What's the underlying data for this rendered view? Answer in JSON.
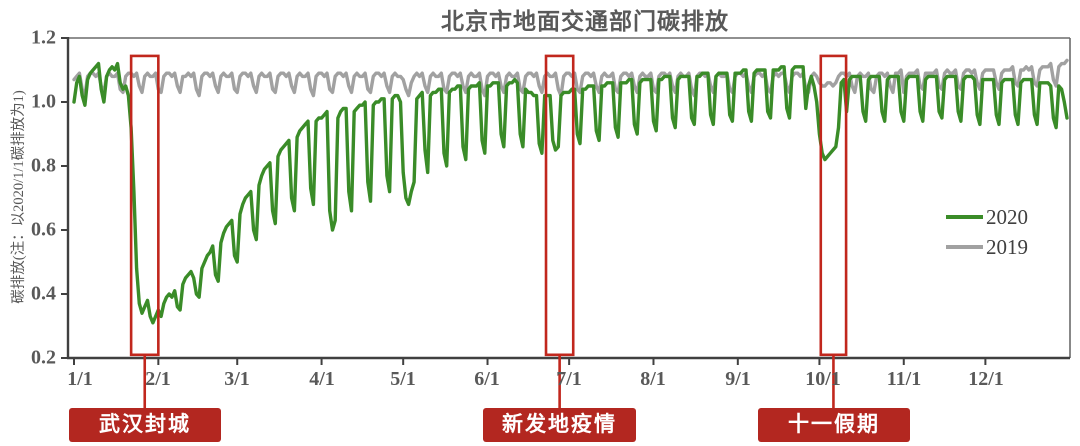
{
  "header": {
    "title": "北京市地面交通部门碳排放"
  },
  "theme": {
    "green_2020": "#3A8C28",
    "gray_2019": "#A1A1A1",
    "annotation_box_stroke": "#C1271D",
    "annotation_label_bg": "#B32720",
    "annotation_label_text": "#FFFFFF",
    "axis_color": "#404040",
    "border_color": "#6b6b6b",
    "tick_text_color": "#595959"
  },
  "chart_data": {
    "type": "line",
    "title": "北京市地面交通部门碳排放",
    "xlabel": "",
    "ylabel": "碳排放(注：以2020/1/1碳排放为1)",
    "ylim": [
      0.2,
      1.2
    ],
    "y_ticks": [
      1.2,
      1.0,
      0.8,
      0.6,
      0.4,
      0.2
    ],
    "y_ticklabels": [
      "1.2",
      "1.0",
      "0.8",
      "0.6",
      "0.4",
      "0.2"
    ],
    "x_ticklabels": [
      "1/1",
      "2/1",
      "3/1",
      "4/1",
      "5/1",
      "6/1",
      "7/1",
      "8/1",
      "9/1",
      "10/1",
      "11/1",
      "12/1"
    ],
    "month_start_day_indices": [
      0,
      31,
      60,
      91,
      121,
      152,
      182,
      213,
      244,
      274,
      305,
      335
    ],
    "grid": false,
    "legend_position": "right-middle",
    "series": [
      {
        "name": "2019",
        "color": "#A1A1A1",
        "z": 1,
        "values": [
          1.07,
          1.08,
          1.09,
          1.04,
          1.02,
          1.08,
          1.09,
          1.09,
          1.08,
          1.09,
          1.05,
          1.03,
          1.08,
          1.09,
          1.08,
          1.08,
          1.09,
          1.04,
          1.03,
          1.08,
          1.09,
          1.09,
          1.08,
          1.09,
          1.05,
          1.03,
          1.08,
          1.09,
          1.08,
          1.08,
          1.09,
          1.04,
          1.03,
          1.08,
          1.09,
          1.09,
          1.08,
          1.09,
          1.05,
          1.03,
          1.08,
          1.08,
          1.09,
          1.08,
          1.09,
          1.04,
          1.02,
          1.08,
          1.09,
          1.09,
          1.08,
          1.09,
          1.05,
          1.03,
          1.08,
          1.09,
          1.08,
          1.08,
          1.09,
          1.04,
          1.03,
          1.08,
          1.09,
          1.09,
          1.08,
          1.09,
          1.05,
          1.03,
          1.08,
          1.09,
          1.08,
          1.08,
          1.09,
          1.04,
          1.03,
          1.08,
          1.09,
          1.09,
          1.08,
          1.09,
          1.05,
          1.03,
          1.08,
          1.09,
          1.08,
          1.08,
          1.09,
          1.04,
          1.02,
          1.08,
          1.09,
          1.09,
          1.08,
          1.09,
          1.04,
          1.03,
          1.08,
          1.09,
          1.09,
          1.08,
          1.09,
          1.05,
          1.03,
          1.08,
          1.09,
          1.08,
          1.08,
          1.09,
          1.04,
          1.03,
          1.08,
          1.09,
          1.09,
          1.08,
          1.09,
          1.05,
          1.03,
          1.08,
          1.09,
          1.08,
          1.08,
          1.07,
          1.04,
          1.02,
          1.06,
          1.08,
          1.09,
          1.08,
          1.09,
          1.05,
          1.03,
          1.08,
          1.09,
          1.08,
          1.08,
          1.09,
          1.04,
          1.03,
          1.08,
          1.09,
          1.09,
          1.08,
          1.09,
          1.05,
          1.03,
          1.08,
          1.09,
          1.08,
          1.08,
          1.09,
          1.04,
          1.02,
          1.08,
          1.09,
          1.09,
          1.08,
          1.09,
          1.05,
          1.03,
          1.08,
          1.09,
          1.08,
          1.08,
          1.09,
          1.04,
          1.03,
          1.08,
          1.09,
          1.09,
          1.08,
          1.09,
          1.05,
          1.03,
          1.08,
          1.09,
          1.08,
          1.08,
          1.09,
          1.04,
          1.02,
          1.08,
          1.09,
          1.09,
          1.08,
          1.09,
          1.04,
          1.03,
          1.08,
          1.09,
          1.09,
          1.08,
          1.09,
          1.05,
          1.03,
          1.08,
          1.09,
          1.08,
          1.08,
          1.09,
          1.04,
          1.03,
          1.08,
          1.09,
          1.09,
          1.08,
          1.09,
          1.05,
          1.03,
          1.08,
          1.09,
          1.08,
          1.08,
          1.09,
          1.04,
          1.03,
          1.08,
          1.09,
          1.09,
          1.08,
          1.09,
          1.05,
          1.03,
          1.08,
          1.09,
          1.08,
          1.08,
          1.09,
          1.04,
          1.02,
          1.08,
          1.09,
          1.09,
          1.08,
          1.09,
          1.05,
          1.03,
          1.08,
          1.09,
          1.08,
          1.08,
          1.09,
          1.04,
          1.03,
          1.08,
          1.09,
          1.09,
          1.08,
          1.09,
          1.05,
          1.03,
          1.08,
          1.09,
          1.09,
          1.08,
          1.09,
          1.04,
          1.03,
          1.08,
          1.09,
          1.08,
          1.09,
          1.09,
          1.05,
          1.03,
          1.08,
          1.09,
          1.09,
          1.08,
          1.09,
          1.04,
          1.03,
          1.08,
          1.09,
          1.08,
          1.06,
          1.05,
          1.05,
          1.06,
          1.06,
          1.05,
          1.06,
          1.08,
          1.09,
          1.09,
          1.08,
          1.09,
          1.05,
          1.03,
          1.08,
          1.09,
          1.08,
          1.08,
          1.09,
          1.04,
          1.03,
          1.08,
          1.09,
          1.09,
          1.08,
          1.09,
          1.05,
          1.03,
          1.09,
          1.09,
          1.1,
          1.03,
          1.08,
          1.09,
          1.09,
          1.09,
          1.1,
          1.05,
          1.04,
          1.09,
          1.09,
          1.09,
          1.09,
          1.1,
          1.05,
          1.04,
          1.09,
          1.1,
          1.09,
          1.09,
          1.1,
          1.05,
          1.04,
          1.09,
          1.1,
          1.1,
          1.09,
          1.1,
          1.06,
          1.04,
          1.09,
          1.1,
          1.1,
          1.1,
          1.1,
          1.06,
          1.04,
          1.09,
          1.1,
          1.1,
          1.1,
          1.11,
          1.06,
          1.05,
          1.1,
          1.1,
          1.11,
          1.1,
          1.11,
          1.06,
          1.05,
          1.1,
          1.11,
          1.11,
          1.11,
          1.12,
          1.07,
          1.05,
          1.11,
          1.12,
          1.12,
          1.13
        ]
      },
      {
        "name": "2020",
        "color": "#3A8C28",
        "z": 2,
        "values": [
          1.0,
          1.06,
          1.08,
          1.02,
          0.99,
          1.07,
          1.09,
          1.1,
          1.11,
          1.12,
          1.04,
          1.0,
          1.08,
          1.1,
          1.11,
          1.1,
          1.12,
          1.06,
          1.04,
          1.05,
          1.02,
          0.92,
          0.72,
          0.48,
          0.37,
          0.34,
          0.36,
          0.38,
          0.33,
          0.31,
          0.33,
          0.35,
          0.33,
          0.37,
          0.39,
          0.4,
          0.39,
          0.41,
          0.36,
          0.35,
          0.43,
          0.45,
          0.46,
          0.47,
          0.45,
          0.4,
          0.39,
          0.48,
          0.5,
          0.52,
          0.53,
          0.55,
          0.46,
          0.44,
          0.56,
          0.59,
          0.61,
          0.62,
          0.63,
          0.52,
          0.5,
          0.65,
          0.68,
          0.7,
          0.71,
          0.72,
          0.6,
          0.57,
          0.74,
          0.77,
          0.79,
          0.8,
          0.81,
          0.66,
          0.62,
          0.83,
          0.85,
          0.86,
          0.87,
          0.88,
          0.7,
          0.66,
          0.89,
          0.91,
          0.92,
          0.93,
          0.94,
          0.73,
          0.68,
          0.94,
          0.95,
          0.95,
          0.96,
          0.97,
          0.66,
          0.6,
          0.63,
          0.95,
          0.97,
          0.98,
          0.98,
          0.72,
          0.66,
          0.97,
          0.98,
          0.99,
          0.99,
          1.0,
          0.75,
          0.69,
          0.99,
          1.0,
          1.0,
          1.01,
          1.01,
          0.77,
          0.72,
          1.01,
          1.02,
          1.02,
          1.0,
          0.78,
          0.7,
          0.68,
          0.72,
          0.75,
          1.01,
          1.02,
          1.03,
          0.85,
          0.78,
          1.02,
          1.03,
          1.03,
          1.04,
          1.04,
          0.84,
          0.8,
          1.03,
          1.04,
          1.04,
          1.05,
          1.05,
          0.86,
          0.82,
          1.04,
          1.05,
          1.05,
          1.05,
          1.06,
          0.88,
          0.84,
          1.05,
          1.05,
          1.06,
          1.06,
          1.06,
          0.9,
          0.86,
          1.05,
          1.06,
          1.06,
          1.07,
          1.06,
          0.9,
          0.86,
          1.04,
          1.03,
          1.03,
          1.02,
          1.02,
          0.87,
          0.84,
          1.02,
          1.02,
          1.02,
          0.88,
          0.85,
          0.86,
          1.02,
          1.03,
          1.03,
          1.03,
          1.04,
          1.04,
          0.9,
          0.87,
          1.04,
          1.04,
          1.05,
          1.05,
          1.05,
          0.91,
          0.88,
          1.05,
          1.05,
          1.06,
          1.06,
          1.06,
          0.92,
          0.89,
          1.06,
          1.06,
          1.06,
          1.07,
          1.07,
          0.93,
          0.9,
          1.06,
          1.07,
          1.07,
          1.07,
          1.07,
          0.94,
          0.91,
          1.07,
          1.07,
          1.08,
          1.08,
          1.08,
          0.95,
          0.92,
          1.07,
          1.08,
          1.08,
          1.08,
          1.08,
          0.95,
          0.93,
          1.08,
          1.08,
          1.09,
          1.09,
          1.09,
          0.96,
          0.93,
          1.08,
          1.09,
          1.09,
          1.09,
          1.09,
          0.96,
          0.94,
          1.09,
          1.09,
          1.09,
          1.1,
          1.1,
          0.97,
          0.94,
          1.09,
          1.1,
          1.1,
          1.1,
          1.1,
          0.97,
          0.95,
          1.1,
          1.1,
          1.1,
          1.11,
          1.11,
          0.98,
          0.95,
          1.1,
          1.11,
          1.11,
          1.11,
          1.11,
          0.98,
          1.05,
          1.08,
          1.05,
          1.0,
          0.9,
          0.84,
          0.82,
          0.83,
          0.84,
          0.85,
          0.86,
          0.92,
          1.06,
          1.07,
          0.97,
          1.07,
          1.08,
          1.08,
          1.08,
          1.08,
          0.97,
          0.94,
          1.07,
          1.08,
          1.08,
          1.08,
          1.08,
          0.97,
          0.94,
          1.07,
          1.08,
          1.08,
          1.08,
          1.08,
          0.97,
          0.94,
          1.07,
          1.08,
          1.08,
          1.08,
          1.08,
          0.97,
          0.94,
          1.07,
          1.08,
          1.08,
          1.08,
          1.08,
          0.97,
          0.95,
          1.07,
          1.08,
          1.08,
          1.08,
          1.08,
          0.97,
          0.94,
          1.07,
          1.08,
          1.08,
          1.08,
          1.07,
          0.96,
          0.93,
          1.07,
          1.07,
          1.07,
          1.07,
          1.07,
          0.96,
          0.93,
          1.06,
          1.07,
          1.07,
          1.07,
          1.07,
          0.96,
          0.93,
          1.06,
          1.07,
          1.07,
          1.07,
          1.07,
          0.96,
          0.93,
          1.06,
          1.06,
          1.06,
          1.06,
          1.05,
          0.95,
          0.92,
          1.05,
          1.04,
          1.0,
          0.95
        ]
      }
    ],
    "annotations": [
      {
        "label": "武汉封城",
        "start_index": 21.0,
        "end_index": 31.0,
        "value_top": 1.144,
        "value_bottom": 0.21
      },
      {
        "label": "新发地疫情",
        "start_index": 173.5,
        "end_index": 183.5,
        "value_top": 1.144,
        "value_bottom": 0.21
      },
      {
        "label": "十一假期",
        "start_index": 274.5,
        "end_index": 283.8,
        "value_top": 1.144,
        "value_bottom": 0.21
      }
    ]
  }
}
